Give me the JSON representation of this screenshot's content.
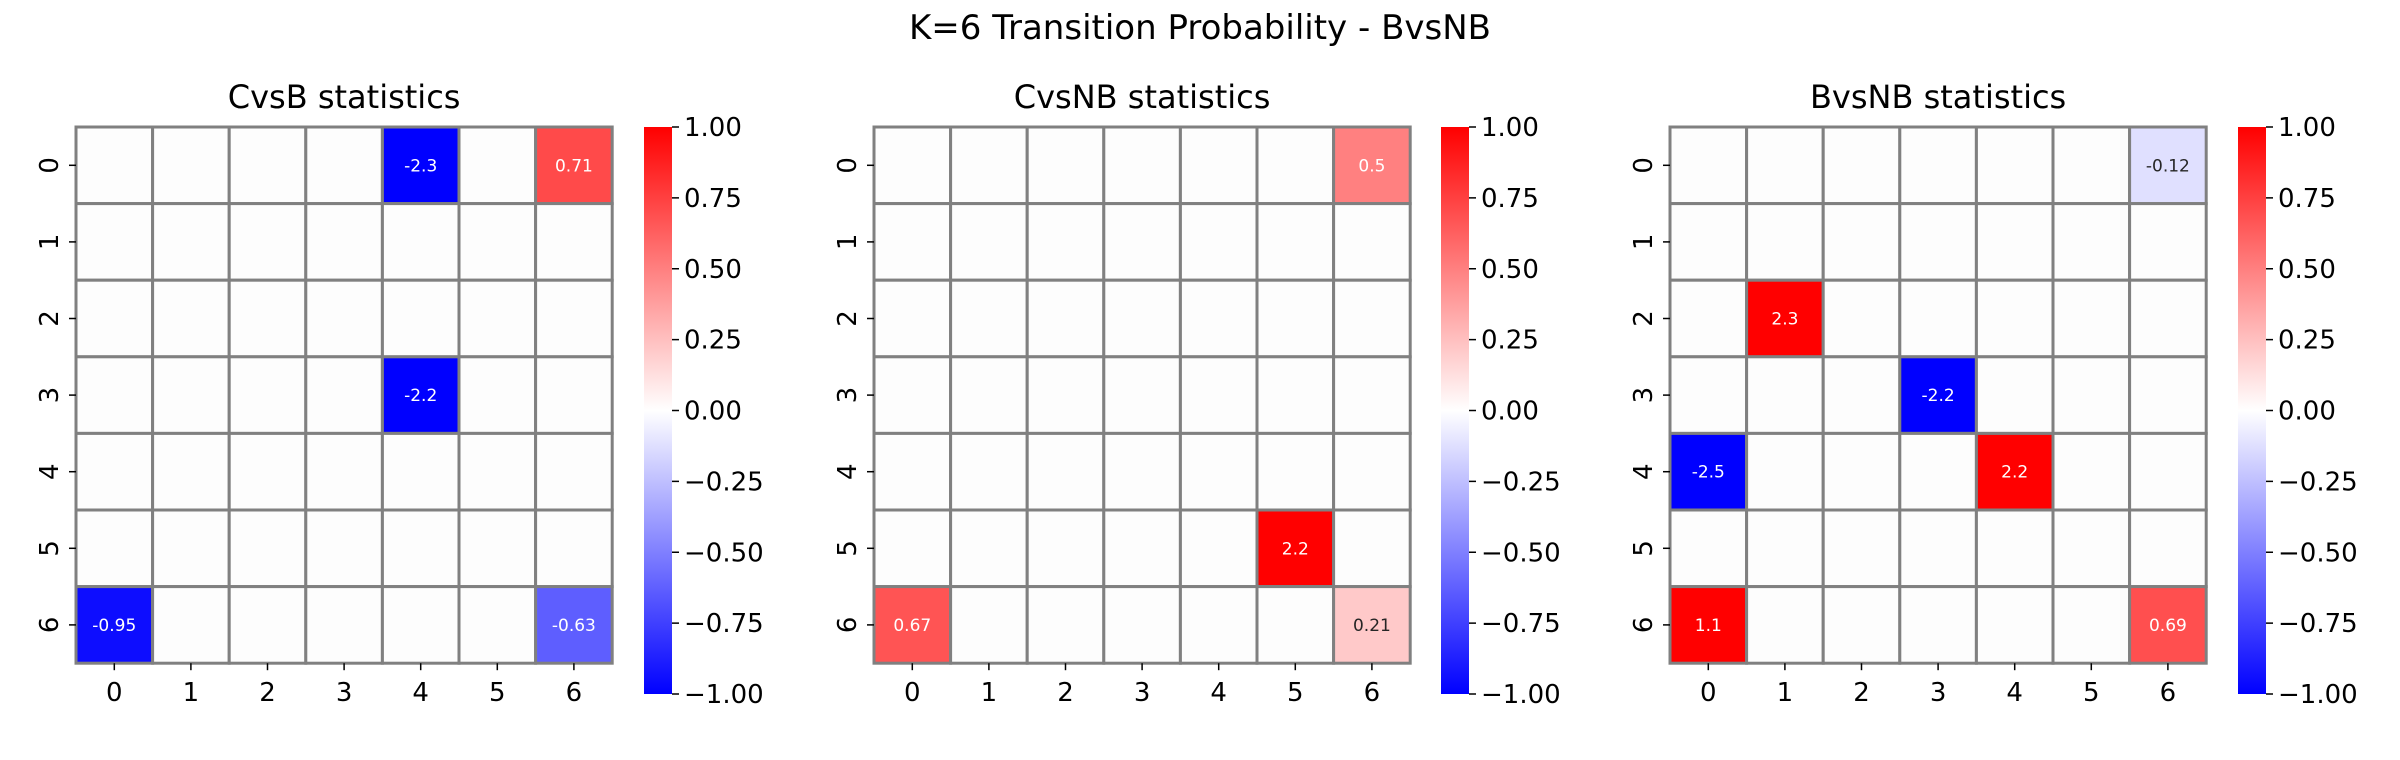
{
  "figure": {
    "suptitle": "K=6 Transition Probability - BvsNB"
  },
  "colors": {
    "negative": "#0000ff",
    "zero": "#ffffff",
    "positive": "#ff0000",
    "grid": "#808080"
  },
  "chart_data": [
    {
      "type": "heatmap",
      "title": "CvsB statistics",
      "x_categories": [
        "0",
        "1",
        "2",
        "3",
        "4",
        "5",
        "6"
      ],
      "y_categories": [
        "0",
        "1",
        "2",
        "3",
        "4",
        "5",
        "6"
      ],
      "cells": [
        {
          "row": 0,
          "col": 4,
          "value": -2.3,
          "label": "-2.3"
        },
        {
          "row": 0,
          "col": 6,
          "value": 0.71,
          "label": "0.71"
        },
        {
          "row": 3,
          "col": 4,
          "value": -2.2,
          "label": "-2.2"
        },
        {
          "row": 6,
          "col": 0,
          "value": -0.95,
          "label": "-0.95"
        },
        {
          "row": 6,
          "col": 6,
          "value": -0.63,
          "label": "-0.63"
        }
      ],
      "colorbar": {
        "vmin": -1.0,
        "vmax": 1.0,
        "ticks": [
          "1.00",
          "0.75",
          "0.50",
          "0.25",
          "0.00",
          "−0.25",
          "−0.50",
          "−0.75",
          "−1.00"
        ]
      },
      "colormap": "bwr"
    },
    {
      "type": "heatmap",
      "title": "CvsNB statistics",
      "x_categories": [
        "0",
        "1",
        "2",
        "3",
        "4",
        "5",
        "6"
      ],
      "y_categories": [
        "0",
        "1",
        "2",
        "3",
        "4",
        "5",
        "6"
      ],
      "cells": [
        {
          "row": 0,
          "col": 6,
          "value": 0.5,
          "label": "0.5"
        },
        {
          "row": 5,
          "col": 5,
          "value": 2.2,
          "label": "2.2"
        },
        {
          "row": 6,
          "col": 0,
          "value": 0.67,
          "label": "0.67"
        },
        {
          "row": 6,
          "col": 6,
          "value": 0.21,
          "label": "0.21"
        }
      ],
      "colorbar": {
        "vmin": -1.0,
        "vmax": 1.0,
        "ticks": [
          "1.00",
          "0.75",
          "0.50",
          "0.25",
          "0.00",
          "−0.25",
          "−0.50",
          "−0.75",
          "−1.00"
        ]
      },
      "colormap": "bwr"
    },
    {
      "type": "heatmap",
      "title": "BvsNB statistics",
      "x_categories": [
        "0",
        "1",
        "2",
        "3",
        "4",
        "5",
        "6"
      ],
      "y_categories": [
        "0",
        "1",
        "2",
        "3",
        "4",
        "5",
        "6"
      ],
      "cells": [
        {
          "row": 0,
          "col": 6,
          "value": -0.12,
          "label": "-0.12"
        },
        {
          "row": 2,
          "col": 1,
          "value": 2.3,
          "label": "2.3"
        },
        {
          "row": 3,
          "col": 3,
          "value": -2.2,
          "label": "-2.2"
        },
        {
          "row": 4,
          "col": 0,
          "value": -2.5,
          "label": "-2.5"
        },
        {
          "row": 4,
          "col": 4,
          "value": 2.2,
          "label": "2.2"
        },
        {
          "row": 6,
          "col": 0,
          "value": 1.1,
          "label": "1.1"
        },
        {
          "row": 6,
          "col": 6,
          "value": 0.69,
          "label": "0.69"
        }
      ],
      "colorbar": {
        "vmin": -1.0,
        "vmax": 1.0,
        "ticks": [
          "1.00",
          "0.75",
          "0.50",
          "0.25",
          "0.00",
          "−0.25",
          "−0.50",
          "−0.75",
          "−1.00"
        ]
      },
      "colormap": "bwr"
    }
  ]
}
